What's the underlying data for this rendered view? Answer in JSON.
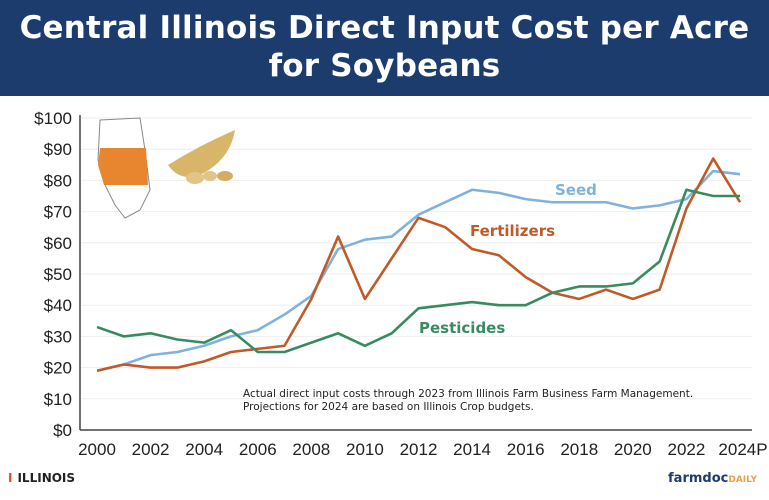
{
  "chart_data": {
    "type": "line",
    "title": "Central Illinois Direct Input Cost per Acre for Soybeans",
    "x": [
      2000,
      2001,
      2002,
      2003,
      2004,
      2005,
      2006,
      2007,
      2008,
      2009,
      2010,
      2011,
      2012,
      2013,
      2014,
      2015,
      2016,
      2017,
      2018,
      2019,
      2020,
      2021,
      2022,
      2023,
      2024
    ],
    "x_tick_labels": [
      "2000",
      "2002",
      "2004",
      "2006",
      "2008",
      "2010",
      "2012",
      "2014",
      "2016",
      "2018",
      "2020",
      "2022",
      "2024P"
    ],
    "y_tick_labels": [
      "$0",
      "$10",
      "$20",
      "$30",
      "$40",
      "$50",
      "$60",
      "$70",
      "$80",
      "$90",
      "$100"
    ],
    "ylim": [
      0,
      100
    ],
    "grid": true,
    "series": [
      {
        "name": "Seed",
        "color": "#7fb2dc",
        "values": [
          19,
          21,
          24,
          25,
          27,
          30,
          32,
          37,
          43,
          58,
          61,
          62,
          69,
          73,
          77,
          76,
          74,
          73,
          73,
          73,
          71,
          72,
          74,
          83,
          82
        ]
      },
      {
        "name": "Fertilizers",
        "color": "#c05a28",
        "values": [
          19,
          21,
          20,
          20,
          22,
          25,
          26,
          27,
          42,
          62,
          42,
          55,
          68,
          65,
          58,
          56,
          49,
          44,
          42,
          45,
          42,
          45,
          71,
          87,
          73
        ]
      },
      {
        "name": "Pesticides",
        "color": "#3a8a60",
        "values": [
          33,
          30,
          31,
          29,
          28,
          32,
          25,
          25,
          28,
          31,
          27,
          31,
          39,
          40,
          41,
          40,
          40,
          44,
          46,
          46,
          47,
          54,
          77,
          75,
          75
        ]
      }
    ],
    "annotation": [
      "Actual direct input costs through 2023 from Illinois Farm Business Farm Management.",
      "Projections for 2024 are based on Illinois Crop budgets."
    ]
  },
  "footer": {
    "left_logo": "ILLINOIS",
    "left_mark": "I",
    "right_logo_main": "farmdoc",
    "right_logo_sub": "DAILY"
  }
}
